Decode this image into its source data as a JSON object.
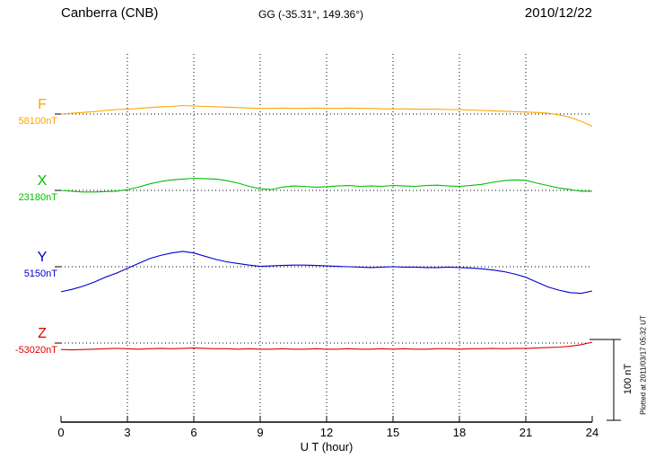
{
  "header": {
    "station": "Canberra (CNB)",
    "coords": "GG (-35.31°, 149.36°)",
    "date": "2010/12/22"
  },
  "axis": {
    "label": "U T (hour)"
  },
  "scale_bar": {
    "label": "100 nT",
    "value_nT": 100
  },
  "caption": "Plotted at 2011/03/17 05:32 UT",
  "chart_data": {
    "type": "line",
    "title": "Canberra (CNB) magnetogram",
    "xlabel": "U T (hour)",
    "x_range": [
      0,
      24
    ],
    "x_ticks": [
      0,
      3,
      6,
      9,
      12,
      15,
      18,
      21,
      24
    ],
    "grid": "dotted",
    "scale_bar_nT": 100,
    "x": [
      0,
      0.5,
      1,
      1.5,
      2,
      2.5,
      3,
      3.5,
      4,
      4.5,
      5,
      5.5,
      6,
      6.5,
      7,
      7.5,
      8,
      8.5,
      9,
      9.5,
      10,
      10.5,
      11,
      11.5,
      12,
      12.5,
      13,
      13.5,
      14,
      14.5,
      15,
      15.5,
      16,
      16.5,
      17,
      17.5,
      18,
      18.5,
      19,
      19.5,
      20,
      20.5,
      21,
      21.5,
      22,
      22.5,
      23,
      23.5,
      24
    ],
    "series": [
      {
        "name": "F",
        "baseline_label": "58100nT",
        "baseline_value_nT": 58100,
        "color": "#FFA500",
        "offsets_nT": [
          0,
          1,
          2,
          3,
          4.5,
          5.5,
          6,
          7,
          8,
          9,
          9.5,
          10.5,
          10,
          9.5,
          9,
          8.5,
          8,
          7.5,
          7,
          7,
          7.5,
          7,
          7,
          7.5,
          7,
          7,
          7.5,
          7,
          7,
          6.5,
          6.5,
          6.5,
          6,
          6,
          6,
          5.5,
          5.5,
          5,
          4.5,
          4,
          3.5,
          3,
          2.5,
          2,
          1,
          -1,
          -4,
          -9,
          -15
        ]
      },
      {
        "name": "X",
        "baseline_label": "23180nT",
        "baseline_value_nT": 23180,
        "color": "#00BE00",
        "offsets_nT": [
          0,
          -1,
          -2,
          -2,
          -1.5,
          -1,
          1,
          4,
          8,
          11,
          13,
          14,
          15,
          14.5,
          14,
          12,
          9,
          5,
          2,
          1,
          4,
          5.5,
          5,
          4,
          4.5,
          5.5,
          6,
          5,
          5.5,
          5,
          6,
          5.5,
          5,
          6,
          6.5,
          5.5,
          5,
          6,
          7.5,
          10,
          12,
          13,
          12.5,
          9,
          6,
          3,
          1,
          -1,
          -1
        ]
      },
      {
        "name": "Y",
        "baseline_label": "5150nT",
        "baseline_value_nT": 5150,
        "color": "#0000CD",
        "offsets_nT": [
          -31,
          -28,
          -24,
          -19,
          -13,
          -8,
          -2,
          4,
          10,
          14,
          17,
          19,
          17,
          13,
          9,
          6,
          4,
          2,
          0.5,
          1,
          1.5,
          2,
          2,
          1.5,
          1,
          0.5,
          0,
          -0.5,
          -1,
          -0.5,
          0,
          -0.5,
          -0.5,
          -1,
          -1,
          -0.5,
          -1,
          -1.5,
          -2.5,
          -4,
          -6,
          -9,
          -13,
          -19,
          -25,
          -29,
          -32,
          -33,
          -30
        ]
      },
      {
        "name": "Z",
        "baseline_label": "-53020nT",
        "baseline_value_nT": -53020,
        "color": "#E00000",
        "offsets_nT": [
          -8,
          -8.5,
          -8,
          -7.5,
          -7,
          -6.5,
          -7,
          -7.5,
          -7,
          -6.5,
          -7,
          -6.5,
          -6,
          -6.5,
          -7,
          -7,
          -7.5,
          -7,
          -7.5,
          -7.5,
          -7,
          -7.5,
          -7.5,
          -7,
          -7.5,
          -7.5,
          -7,
          -7.5,
          -7.5,
          -7,
          -7.5,
          -7,
          -7.5,
          -7.5,
          -7,
          -7,
          -7.5,
          -7,
          -7,
          -6.5,
          -7,
          -6.5,
          -6.5,
          -6,
          -5.5,
          -5,
          -4,
          -2,
          1
        ]
      }
    ]
  }
}
